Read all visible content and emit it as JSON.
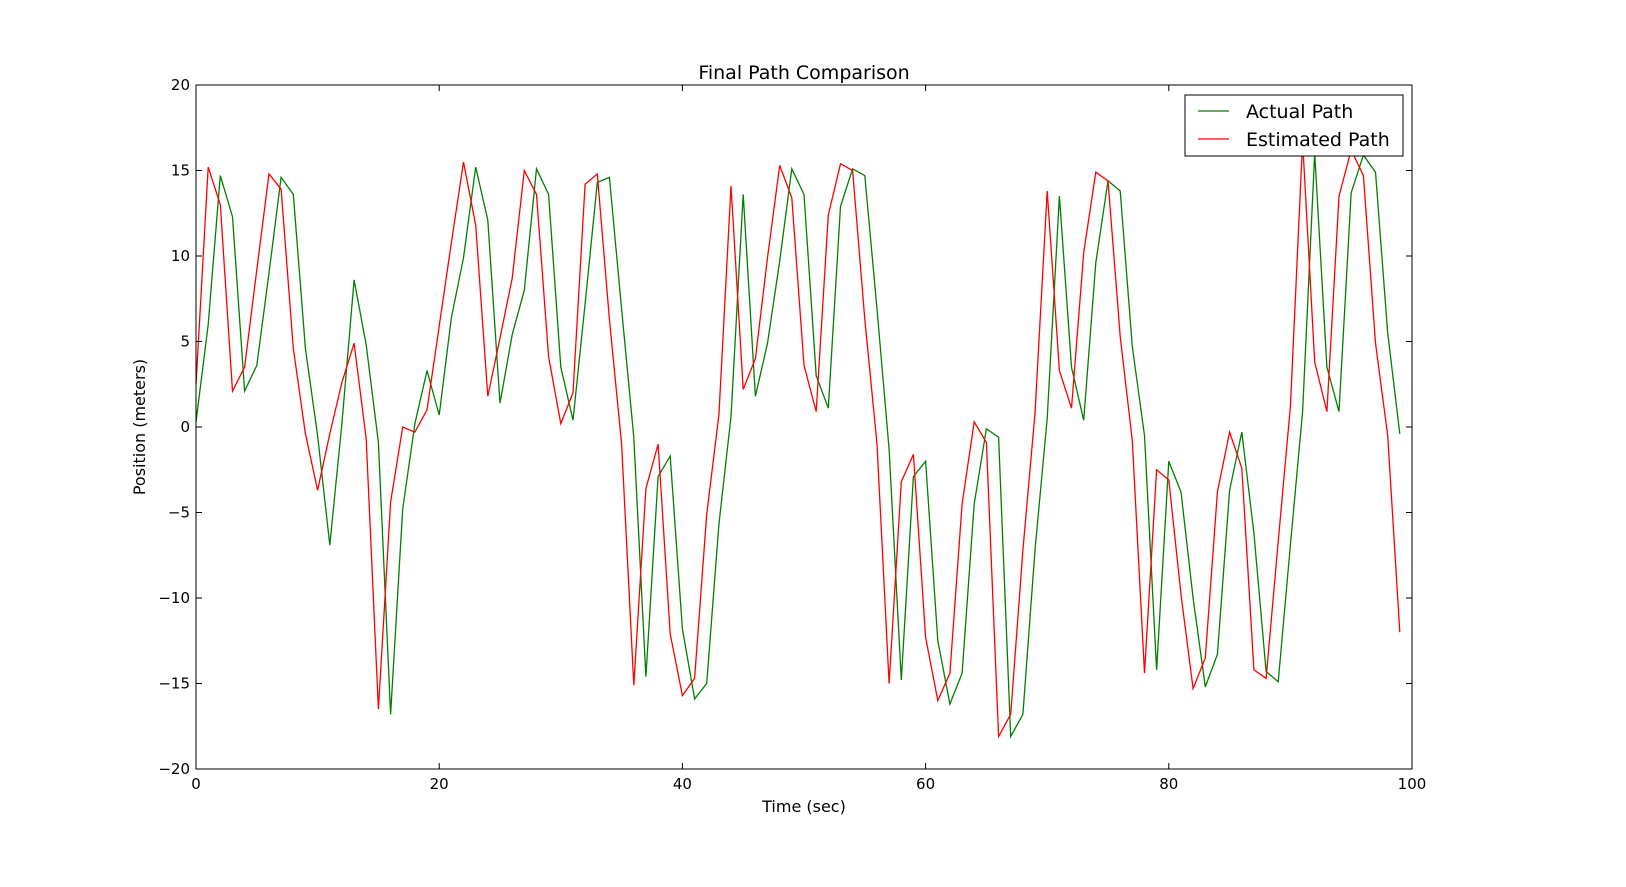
{
  "chart_data": {
    "type": "line",
    "title": "Final Path Comparison",
    "xlabel": "Time (sec)",
    "ylabel": "Position (meters)",
    "xlim": [
      0,
      100
    ],
    "ylim": [
      -20,
      20
    ],
    "xticks": [
      0,
      20,
      40,
      60,
      80,
      100
    ],
    "yticks": [
      -20,
      -15,
      -10,
      -5,
      0,
      5,
      10,
      15,
      20
    ],
    "xtick_labels": [
      "0",
      "20",
      "40",
      "60",
      "80",
      "100"
    ],
    "ytick_labels": [
      "−20",
      "−15",
      "−10",
      "−5",
      "0",
      "5",
      "10",
      "15",
      "20"
    ],
    "grid": false,
    "legend_position": "top-right",
    "x": [
      0,
      1,
      2,
      3,
      4,
      5,
      6,
      7,
      8,
      9,
      10,
      11,
      12,
      13,
      14,
      15,
      16,
      17,
      18,
      19,
      20,
      21,
      22,
      23,
      24,
      25,
      26,
      27,
      28,
      29,
      30,
      31,
      32,
      33,
      34,
      35,
      36,
      37,
      38,
      39,
      40,
      41,
      42,
      43,
      44,
      45,
      46,
      47,
      48,
      49,
      50,
      51,
      52,
      53,
      54,
      55,
      56,
      57,
      58,
      59,
      60,
      61,
      62,
      63,
      64,
      65,
      66,
      67,
      68,
      69,
      70,
      71,
      72,
      73,
      74,
      75,
      76,
      77,
      78,
      79,
      80,
      81,
      82,
      83,
      84,
      85,
      86,
      87,
      88,
      89,
      90,
      91,
      92,
      93,
      94,
      95,
      96,
      97,
      98,
      99
    ],
    "series": [
      {
        "name": "Actual Path",
        "color": "#008000",
        "values": [
          0.3,
          6.0,
          14.7,
          12.3,
          2.1,
          3.6,
          9.0,
          14.6,
          13.6,
          4.6,
          -0.5,
          -6.9,
          0.2,
          8.6,
          4.8,
          -0.9,
          -16.8,
          -4.8,
          0.2,
          3.3,
          0.7,
          6.4,
          9.9,
          15.2,
          12.1,
          1.4,
          5.4,
          8.0,
          15.1,
          13.6,
          3.5,
          0.4,
          7.2,
          14.3,
          14.6,
          6.9,
          -0.6,
          -14.6,
          -2.9,
          -1.7,
          -11.8,
          -15.9,
          -15.0,
          -5.7,
          0.6,
          13.6,
          1.8,
          4.9,
          9.7,
          15.1,
          13.6,
          3.0,
          1.1,
          12.9,
          15.1,
          14.7,
          6.9,
          -1.3,
          -14.8,
          -2.9,
          -2.0,
          -12.5,
          -16.2,
          -14.4,
          -4.5,
          -0.1,
          -0.6,
          -18.1,
          -16.8,
          -7.2,
          0.5,
          13.5,
          3.5,
          0.4,
          9.6,
          14.4,
          13.8,
          4.7,
          -0.5,
          -14.2,
          -2.0,
          -3.8,
          -10.0,
          -15.2,
          -13.3,
          -3.7,
          -0.3,
          -6.2,
          -14.3,
          -14.9,
          -6.9,
          0.9,
          16.0,
          3.5,
          0.9,
          13.7,
          15.9,
          14.9,
          5.5,
          -0.4
        ]
      },
      {
        "name": "Estimated Path",
        "color": "#ff0000",
        "values": [
          2.5,
          15.2,
          13.0,
          2.1,
          3.5,
          9.2,
          14.8,
          13.9,
          4.6,
          -0.4,
          -3.7,
          -0.4,
          2.6,
          4.9,
          -0.7,
          -16.5,
          -4.4,
          0.0,
          -0.3,
          1.0,
          5.9,
          10.8,
          15.5,
          11.8,
          1.8,
          5.2,
          8.7,
          15.0,
          13.6,
          4.1,
          0.2,
          2.0,
          14.2,
          14.8,
          6.3,
          -1.0,
          -15.1,
          -3.6,
          -1.0,
          -12.1,
          -15.7,
          -14.7,
          -5.1,
          0.7,
          14.1,
          2.2,
          4.0,
          9.9,
          15.3,
          13.4,
          3.6,
          0.9,
          12.4,
          15.4,
          15.0,
          6.3,
          -1.0,
          -15.0,
          -3.2,
          -1.6,
          -12.3,
          -16.0,
          -14.4,
          -4.5,
          0.3,
          -0.9,
          -18.1,
          -16.8,
          -7.2,
          0.8,
          13.8,
          3.3,
          1.1,
          10.2,
          14.9,
          14.4,
          5.3,
          -0.8,
          -14.4,
          -2.5,
          -3.1,
          -9.8,
          -15.3,
          -13.5,
          -3.8,
          -0.3,
          -2.4,
          -14.2,
          -14.7,
          -6.7,
          1.2,
          16.7,
          3.8,
          0.9,
          13.5,
          16.2,
          14.7,
          4.9,
          -0.5,
          -12.0
        ]
      }
    ]
  }
}
